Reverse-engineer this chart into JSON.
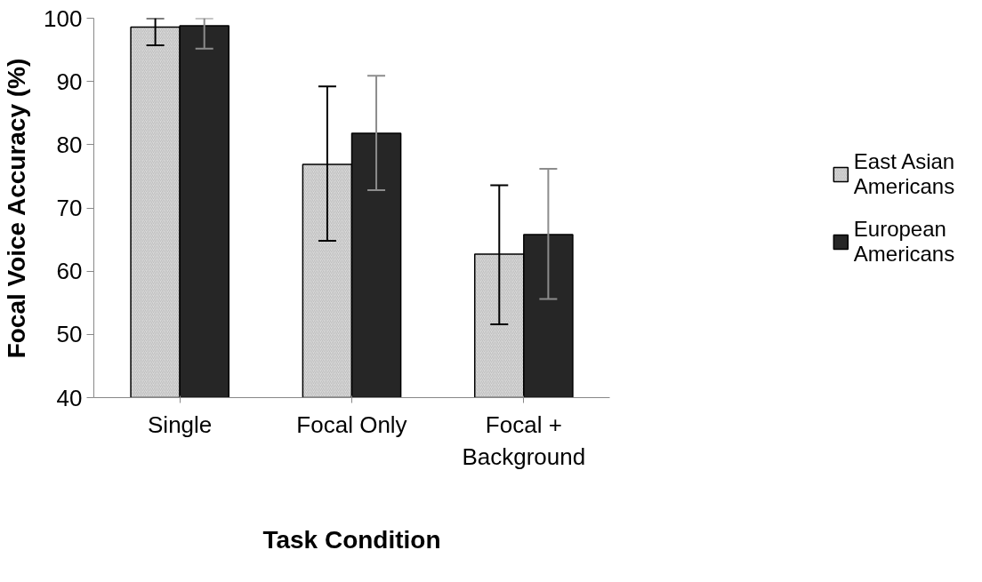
{
  "chart_data": {
    "type": "bar",
    "xlabel": "Task Condition",
    "ylabel": "Focal Voice Accuracy (%)",
    "categories": [
      "Single",
      "Focal Only",
      "Focal + Background"
    ],
    "series": [
      {
        "name": "East Asian Americans",
        "color": "#d9d9d9",
        "values": [
          98.6,
          76.9,
          62.7
        ],
        "errors": [
          [
            95.7,
            100
          ],
          [
            64.8,
            89.2
          ],
          [
            51.6,
            73.6
          ]
        ]
      },
      {
        "name": "European Americans",
        "color": "#262626",
        "values": [
          98.8,
          81.8,
          65.8
        ],
        "errors": [
          [
            95.2,
            100
          ],
          [
            72.8,
            90.9
          ],
          [
            55.6,
            76.2
          ]
        ]
      }
    ],
    "ylim": [
      40,
      100
    ],
    "yticks": [
      40,
      50,
      60,
      70,
      80,
      90,
      100
    ],
    "grid": false,
    "legend": "right"
  }
}
